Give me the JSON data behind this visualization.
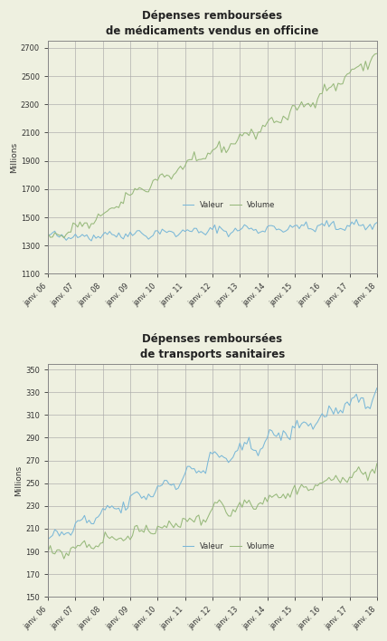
{
  "bg_color": "#eef0e0",
  "plot_bg": "#eef0e0",
  "grid_color": "#aaaaaa",
  "blue_color": "#7ab8d8",
  "green_color": "#96b87a",
  "chart1": {
    "title": "Dépenses remboursées\nde médicaments vendus en officine",
    "ylabel": "Millions",
    "ylim": [
      1100,
      2750
    ],
    "yticks": [
      1100,
      1300,
      1500,
      1700,
      1900,
      2100,
      2300,
      2500,
      2700
    ]
  },
  "chart2": {
    "title": "Dépenses remboursées\nde transports sanitaires",
    "ylabel": "Millions",
    "ylim": [
      150,
      355
    ],
    "yticks": [
      150,
      170,
      190,
      210,
      230,
      250,
      270,
      290,
      310,
      330,
      350
    ]
  },
  "xtick_labels": [
    "janv. 06",
    "janv. 07",
    "janv. 08",
    "janv. 09",
    "janv. 10",
    "janv. 11",
    "janv. 12",
    "janv. 13",
    "janv. 14",
    "janv. 15",
    "janv. 16",
    "janv. 17",
    "janv. 18"
  ],
  "n_months": 145
}
